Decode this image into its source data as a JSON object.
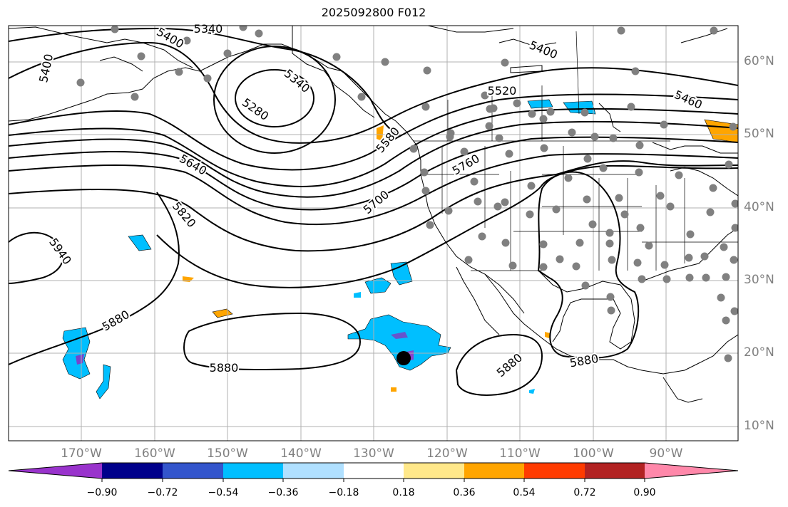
{
  "title": "2025092800 F012",
  "lat_labels": [
    "60°N",
    "50°N",
    "40°N",
    "30°N",
    "20°N",
    "10°N"
  ],
  "lon_labels": [
    "170°W",
    "160°W",
    "150°W",
    "140°W",
    "130°W",
    "120°W",
    "110°W",
    "100°W",
    "90°W"
  ],
  "contour_labels": [
    "5340",
    "5400",
    "5400",
    "5340",
    "5280",
    "5400",
    "5520",
    "5460",
    "5580",
    "5640",
    "5760",
    "5700",
    "5820",
    "5940",
    "5880",
    "5880",
    "5880",
    "5880"
  ],
  "colorbar": {
    "tick_labels": [
      "−0.90",
      "−0.72",
      "−0.54",
      "−0.36",
      "−0.18",
      "0.18",
      "0.36",
      "0.54",
      "0.72",
      "0.90"
    ],
    "colors": [
      "#9933cc",
      "#00008b",
      "#3355cc",
      "#00bfff",
      "#b0e0ff",
      "#ffffff",
      "#ffe88a",
      "#ffa500",
      "#ff3b00",
      "#b22222",
      "#ff88aa"
    ]
  }
}
